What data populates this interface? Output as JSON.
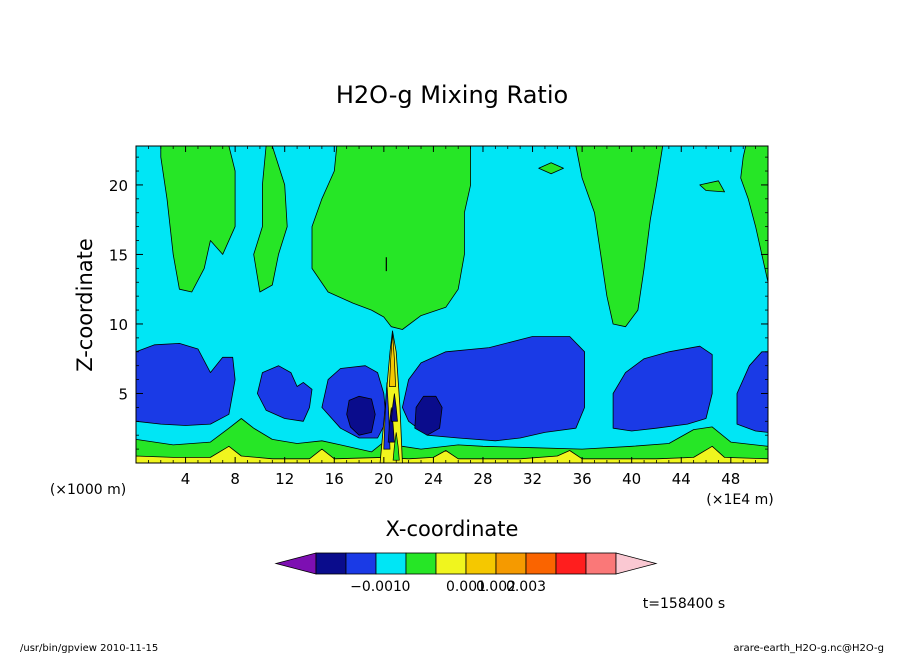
{
  "chart_data": {
    "type": "heatmap",
    "title": "H2O-g Mixing Ratio",
    "xlabel": "X-coordinate",
    "ylabel": "Z-coordinate",
    "x_unit_left": "(×1000 m)",
    "x_unit_right": "(×1E4 m)",
    "xlim": [
      0,
      51
    ],
    "ylim": [
      0,
      22.8
    ],
    "x_ticks": [
      4,
      8,
      12,
      16,
      20,
      24,
      28,
      32,
      36,
      40,
      44,
      48
    ],
    "x_tick_labels": [
      "4",
      "8",
      "12",
      "16",
      "20",
      "24",
      "28",
      "32",
      "36",
      "40",
      "44",
      "48"
    ],
    "y_ticks": [
      5,
      10,
      15,
      20
    ],
    "y_tick_labels": [
      "5",
      "10",
      "15",
      "20"
    ],
    "time_label": "t=158400 s",
    "colorbar": {
      "colors": [
        "#7d0fb2",
        "#0a0c8c",
        "#1a3ae6",
        "#00e6f5",
        "#26e626",
        "#f0f51e",
        "#f5c800",
        "#f59a00",
        "#fa6400",
        "#ff1e1e",
        "#fa7878",
        "#fac8d2"
      ],
      "labels": [
        "−0.001",
        "0",
        "0.001",
        "0.002",
        "0.003"
      ]
    },
    "background_value_color": "#00e6f5",
    "regions": [
      {
        "level": "green",
        "color": "#26e626",
        "points": [
          [
            2,
            22.8
          ],
          [
            7.5,
            22.8
          ],
          [
            8,
            21
          ],
          [
            8,
            17
          ],
          [
            7,
            15
          ],
          [
            6,
            16
          ],
          [
            5.5,
            14
          ],
          [
            4.5,
            12.3
          ],
          [
            3.5,
            12.5
          ],
          [
            3,
            15
          ],
          [
            2.5,
            19
          ],
          [
            2,
            22
          ]
        ]
      },
      {
        "level": "green",
        "color": "#26e626",
        "points": [
          [
            11,
            22.8
          ],
          [
            12,
            20
          ],
          [
            12.2,
            17
          ],
          [
            11.5,
            15
          ],
          [
            11,
            12.8
          ],
          [
            10,
            12.3
          ],
          [
            9.5,
            15
          ],
          [
            10.2,
            17
          ],
          [
            10.2,
            20
          ],
          [
            10.5,
            22.8
          ]
        ]
      },
      {
        "level": "green",
        "color": "#26e626",
        "points": [
          [
            16.2,
            22.8
          ],
          [
            27,
            22.8
          ],
          [
            27,
            20
          ],
          [
            26.5,
            18
          ],
          [
            26.5,
            15
          ],
          [
            26,
            12.5
          ],
          [
            25,
            11.2
          ],
          [
            23,
            10.6
          ],
          [
            21.5,
            9.6
          ],
          [
            20.6,
            9.8
          ],
          [
            20,
            10.5
          ],
          [
            19,
            11
          ],
          [
            17.5,
            11.5
          ],
          [
            15.5,
            12.3
          ],
          [
            14.2,
            14
          ],
          [
            14.2,
            17
          ],
          [
            15,
            19
          ],
          [
            16,
            21
          ]
        ]
      },
      {
        "level": "green",
        "color": "#26e626",
        "points": [
          [
            35.5,
            22.8
          ],
          [
            42.5,
            22.8
          ],
          [
            42,
            20
          ],
          [
            41.5,
            17.5
          ],
          [
            41,
            14
          ],
          [
            40.5,
            11
          ],
          [
            39.5,
            9.8
          ],
          [
            38.5,
            10
          ],
          [
            38,
            12
          ],
          [
            37.5,
            15
          ],
          [
            37,
            18
          ],
          [
            36,
            20.5
          ]
        ]
      },
      {
        "level": "green",
        "color": "#26e626",
        "points": [
          [
            49.2,
            22.8
          ],
          [
            51,
            22.8
          ],
          [
            51,
            13
          ],
          [
            50.5,
            15
          ],
          [
            50,
            17
          ],
          [
            49.4,
            19
          ],
          [
            48.8,
            20.5
          ],
          [
            49,
            22
          ]
        ]
      },
      {
        "level": "green",
        "color": "#26e626",
        "points": [
          [
            32.5,
            21.2
          ],
          [
            33.5,
            21.6
          ],
          [
            34.5,
            21.2
          ],
          [
            33.5,
            20.8
          ]
        ]
      },
      {
        "level": "green",
        "color": "#26e626",
        "points": [
          [
            45.5,
            20
          ],
          [
            47,
            20.3
          ],
          [
            47.5,
            19.5
          ],
          [
            46,
            19.6
          ]
        ]
      },
      {
        "level": "blue",
        "color": "#1a3ae6",
        "points": [
          [
            0,
            8
          ],
          [
            1.5,
            8.5
          ],
          [
            3.5,
            8.6
          ],
          [
            5,
            8.2
          ],
          [
            6,
            6.5
          ],
          [
            7,
            7.6
          ],
          [
            7.8,
            7.6
          ],
          [
            8,
            6
          ],
          [
            7.5,
            3.5
          ],
          [
            6,
            2.8
          ],
          [
            4,
            2.7
          ],
          [
            2,
            2.8
          ],
          [
            0,
            3
          ]
        ]
      },
      {
        "level": "blue",
        "color": "#1a3ae6",
        "points": [
          [
            9.8,
            5
          ],
          [
            10.2,
            6.5
          ],
          [
            11.5,
            7
          ],
          [
            12.5,
            6.5
          ],
          [
            13,
            5.5
          ],
          [
            13.5,
            5.8
          ],
          [
            14.2,
            5.3
          ],
          [
            14,
            4
          ],
          [
            13.5,
            3
          ],
          [
            12,
            3.2
          ],
          [
            10.5,
            3.8
          ]
        ]
      },
      {
        "level": "blue",
        "color": "#1a3ae6",
        "points": [
          [
            15,
            4
          ],
          [
            15.5,
            6
          ],
          [
            16.5,
            6.8
          ],
          [
            18.5,
            7
          ],
          [
            19.5,
            6.5
          ],
          [
            20,
            5
          ],
          [
            20.2,
            3
          ],
          [
            19.5,
            1.8
          ],
          [
            18,
            1.8
          ],
          [
            16.5,
            2.5
          ]
        ]
      },
      {
        "level": "blue",
        "color": "#1a3ae6",
        "points": [
          [
            21.5,
            4
          ],
          [
            22,
            6
          ],
          [
            23,
            7.2
          ],
          [
            25,
            8
          ],
          [
            28.5,
            8.3
          ],
          [
            32,
            9.1
          ],
          [
            35,
            9.1
          ],
          [
            36.2,
            8
          ],
          [
            36.2,
            4
          ],
          [
            35.5,
            2.5
          ],
          [
            33,
            2.2
          ],
          [
            31,
            1.8
          ],
          [
            29,
            1.6
          ],
          [
            26,
            1.8
          ],
          [
            23.5,
            2
          ],
          [
            22,
            3
          ]
        ]
      },
      {
        "level": "blue",
        "color": "#1a3ae6",
        "points": [
          [
            38.5,
            2.5
          ],
          [
            38.5,
            5
          ],
          [
            39.5,
            6.5
          ],
          [
            41,
            7.5
          ],
          [
            43,
            8
          ],
          [
            45.5,
            8.4
          ],
          [
            46.5,
            7.8
          ],
          [
            46.5,
            5
          ],
          [
            46,
            3.2
          ],
          [
            44.5,
            2.8
          ],
          [
            42,
            2.5
          ],
          [
            40,
            2.3
          ]
        ]
      },
      {
        "level": "blue",
        "color": "#1a3ae6",
        "points": [
          [
            48.5,
            2.8
          ],
          [
            48.5,
            5
          ],
          [
            49.5,
            7
          ],
          [
            50.5,
            8
          ],
          [
            51,
            8
          ],
          [
            51,
            2.2
          ],
          [
            50,
            2.3
          ]
        ]
      },
      {
        "level": "darkblue",
        "color": "#0a0c8c",
        "points": [
          [
            17,
            3.5
          ],
          [
            17.2,
            4.5
          ],
          [
            18,
            4.8
          ],
          [
            19,
            4.6
          ],
          [
            19.3,
            3.5
          ],
          [
            19,
            2.2
          ],
          [
            18,
            2
          ],
          [
            17.3,
            2.6
          ]
        ]
      },
      {
        "level": "darkblue",
        "color": "#0a0c8c",
        "points": [
          [
            22.5,
            2.5
          ],
          [
            22.6,
            4
          ],
          [
            23.2,
            4.8
          ],
          [
            24.2,
            4.8
          ],
          [
            24.7,
            4
          ],
          [
            24.5,
            2.5
          ],
          [
            23.5,
            2
          ]
        ]
      },
      {
        "level": "green",
        "color": "#26e626",
        "points": [
          [
            0,
            1.7
          ],
          [
            3,
            1.3
          ],
          [
            6,
            1.5
          ],
          [
            7.5,
            2.5
          ],
          [
            8.5,
            3.2
          ],
          [
            9.5,
            2.5
          ],
          [
            11,
            1.7
          ],
          [
            13,
            1.4
          ],
          [
            15,
            1.6
          ],
          [
            16.5,
            1.3
          ],
          [
            19,
            0.8
          ],
          [
            20,
            1.5
          ],
          [
            21.5,
            1.2
          ],
          [
            23,
            1
          ],
          [
            26,
            1.3
          ],
          [
            28,
            1.2
          ],
          [
            32,
            1.1
          ],
          [
            36,
            1
          ],
          [
            40,
            1.2
          ],
          [
            43,
            1.4
          ],
          [
            45,
            2.4
          ],
          [
            46.5,
            2.6
          ],
          [
            48,
            1.5
          ],
          [
            51,
            1.2
          ],
          [
            51,
            0
          ],
          [
            0,
            0
          ]
        ]
      },
      {
        "level": "yellow",
        "color": "#f0f51e",
        "points": [
          [
            0,
            0.5
          ],
          [
            3,
            0.4
          ],
          [
            6,
            0.4
          ],
          [
            7.5,
            1.2
          ],
          [
            8.5,
            0.5
          ],
          [
            11,
            0.3
          ],
          [
            14,
            0.3
          ],
          [
            15,
            1
          ],
          [
            16,
            0.3
          ],
          [
            20,
            0.4
          ],
          [
            22,
            0.3
          ],
          [
            24,
            0.4
          ],
          [
            25,
            0.9
          ],
          [
            26,
            0.3
          ],
          [
            31,
            0.3
          ],
          [
            34,
            0.5
          ],
          [
            35,
            0.9
          ],
          [
            36,
            0.3
          ],
          [
            42,
            0.3
          ],
          [
            45,
            0.4
          ],
          [
            46.5,
            1.2
          ],
          [
            47.5,
            0.4
          ],
          [
            51,
            0.3
          ],
          [
            51,
            0
          ],
          [
            0,
            0
          ]
        ]
      },
      {
        "level": "mixed-column",
        "color": "#f0f51e",
        "points": [
          [
            19.7,
            0
          ],
          [
            20.1,
            4
          ],
          [
            20.5,
            8
          ],
          [
            20.7,
            9.5
          ],
          [
            21,
            8
          ],
          [
            21.3,
            4
          ],
          [
            21.5,
            0
          ]
        ]
      }
    ]
  },
  "footer": {
    "left": "/usr/bin/gpview   2010-11-15",
    "right": "arare-earth_H2O-g.nc@H2O-g"
  }
}
